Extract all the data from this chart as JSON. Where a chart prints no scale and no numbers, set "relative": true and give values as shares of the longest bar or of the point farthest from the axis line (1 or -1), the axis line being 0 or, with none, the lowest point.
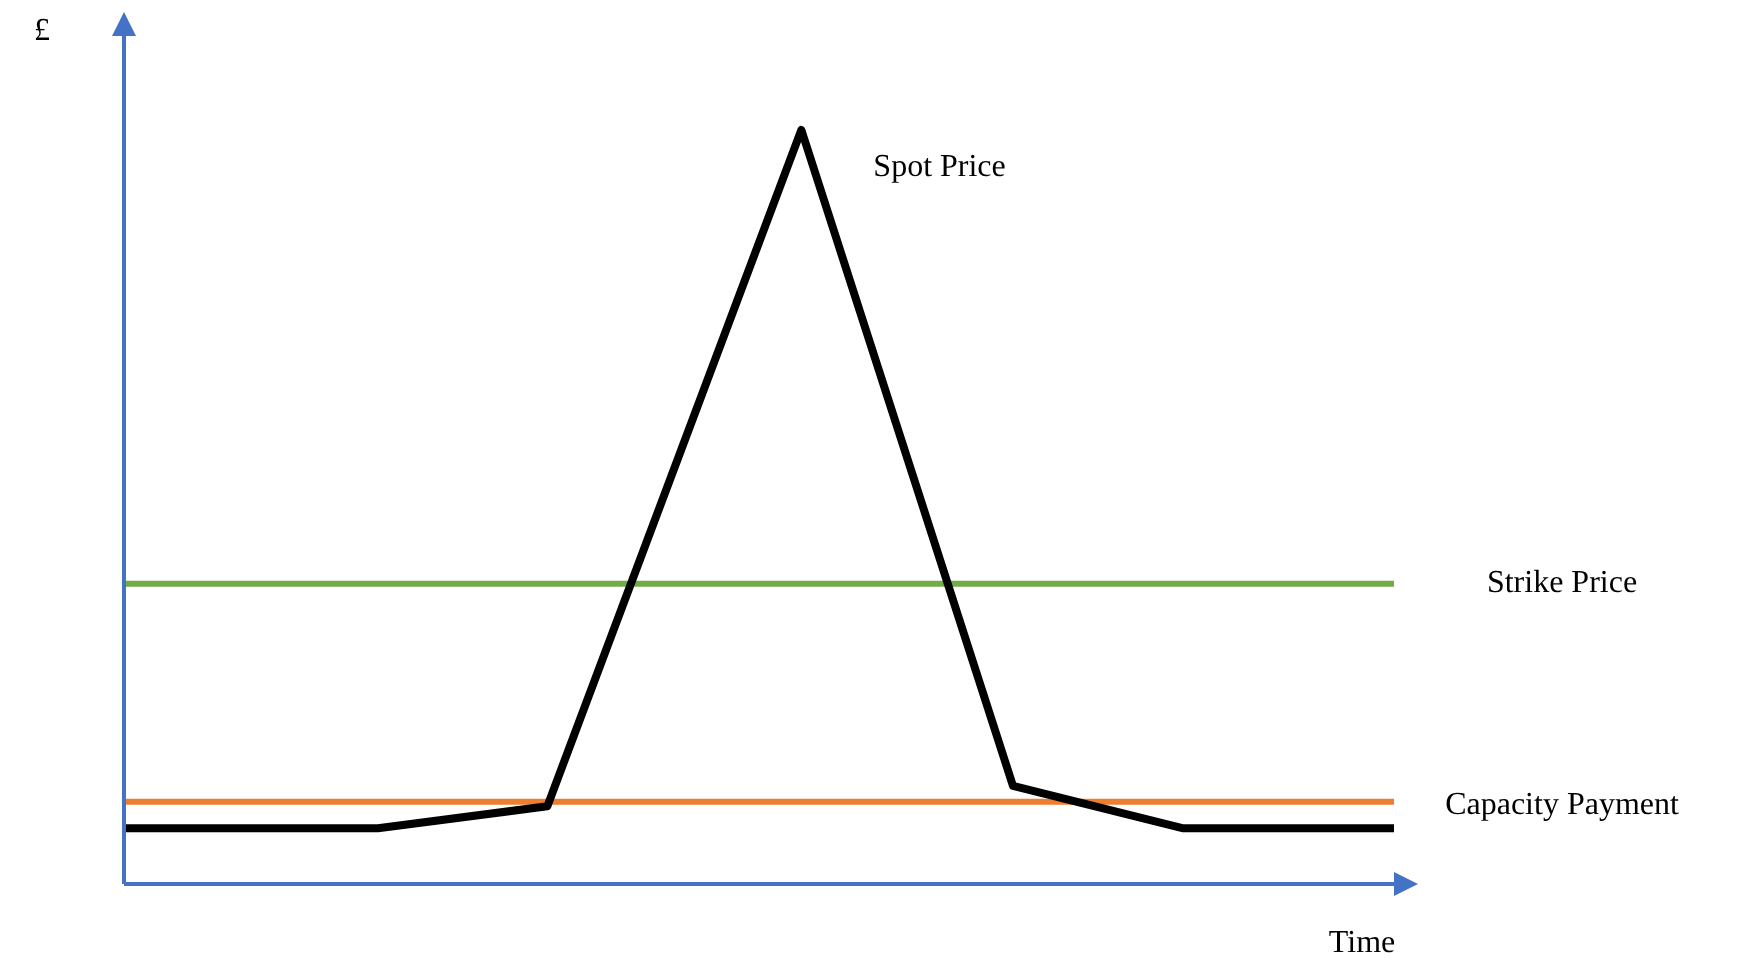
{
  "chart_data": {
    "type": "line",
    "relative": true,
    "xlabel": "Time",
    "ylabel": "£",
    "legend": false,
    "categories": [
      null,
      null,
      null,
      null,
      null,
      null,
      null,
      null,
      null,
      null,
      null,
      null,
      null,
      null,
      null,
      null,
      null,
      null,
      null,
      null,
      null,
      null,
      null,
      null,
      null,
      null,
      null,
      null,
      null,
      null,
      null
    ],
    "series": [
      {
        "name": "Spot Price",
        "color": "#000000",
        "values": [
          0.074,
          null,
          null,
          null,
          null,
          null,
          0.074,
          null,
          null,
          null,
          0.103,
          null,
          null,
          null,
          null,
          null,
          1,
          null,
          null,
          null,
          null,
          0.13,
          null,
          null,
          null,
          0.074,
          null,
          null,
          null,
          null,
          0.074
        ]
      }
    ],
    "ref_lines": [
      {
        "axis": "y",
        "value": 0.398,
        "label": "Strike Price",
        "color": "#70ad47"
      },
      {
        "axis": "y",
        "value": 0.109,
        "label": "Capacity Payment",
        "color": "#ed7d31"
      }
    ]
  }
}
